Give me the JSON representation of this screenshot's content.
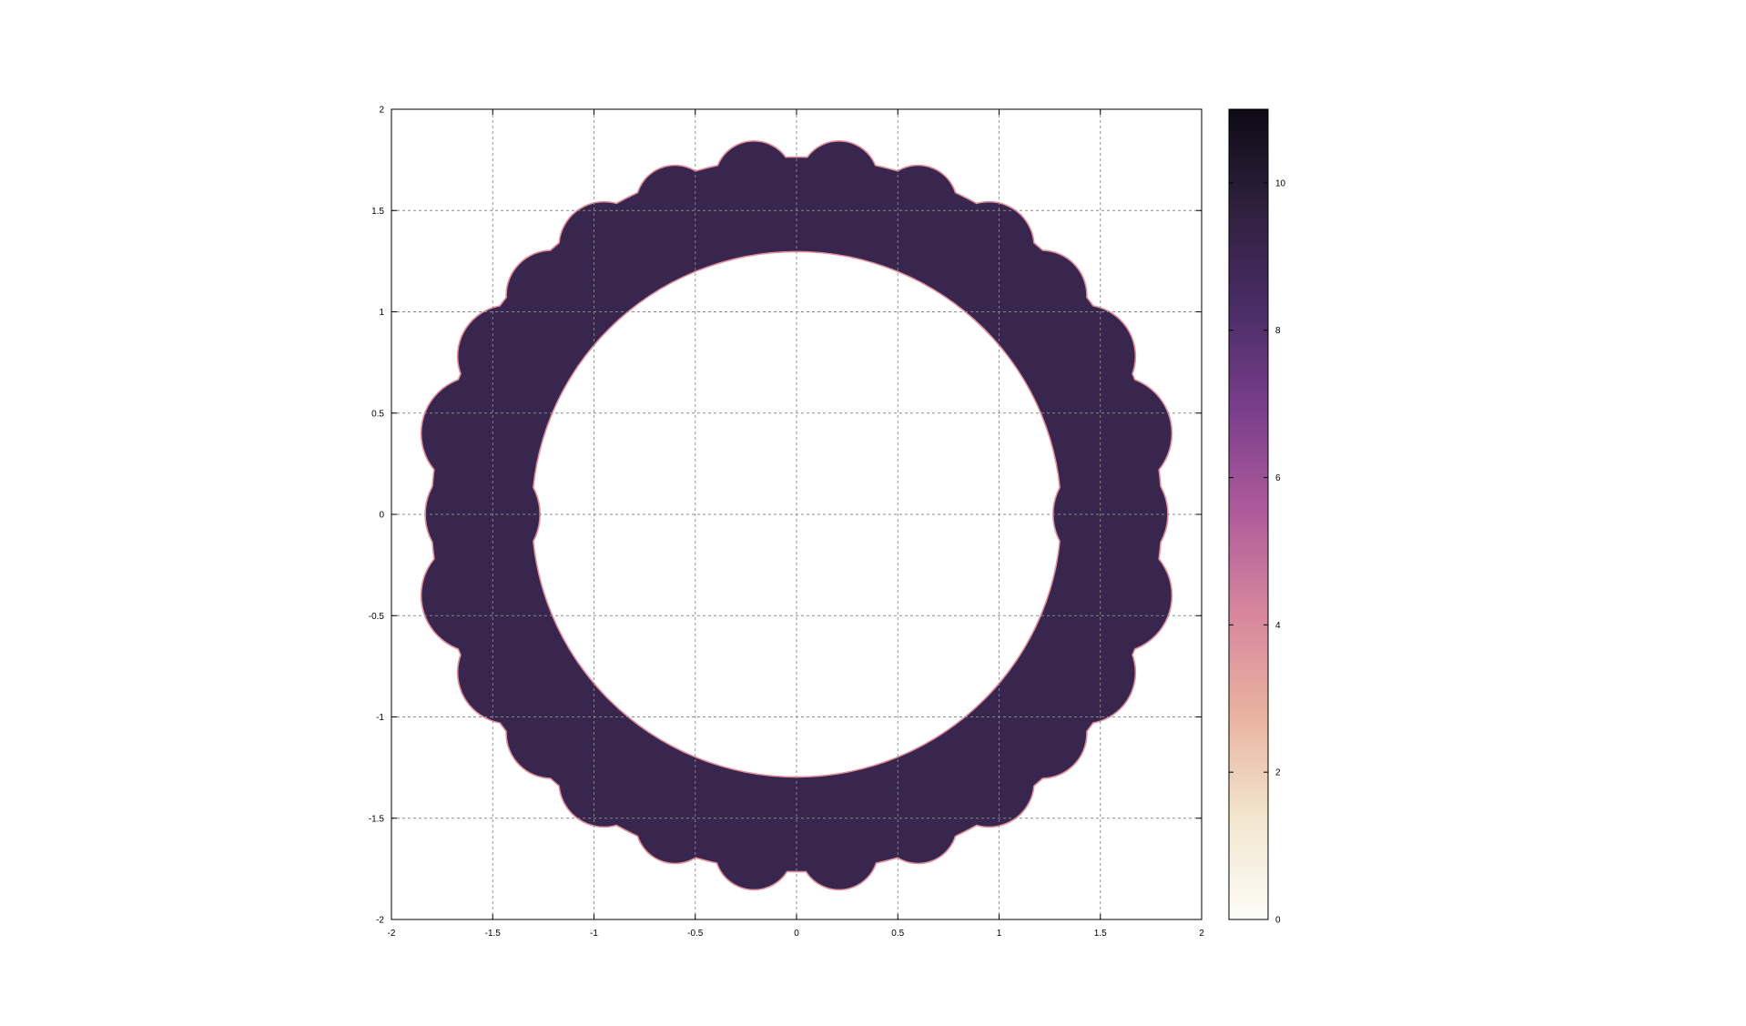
{
  "chart_data": {
    "type": "heatmap",
    "title": "",
    "xlabel": "",
    "ylabel": "",
    "xlim": [
      -2,
      2
    ],
    "ylim": [
      -2,
      2
    ],
    "grid": true,
    "x_ticks": [
      "-2",
      "-1.5",
      "-1",
      "-0.5",
      "0",
      "0.5",
      "1",
      "1.5",
      "2"
    ],
    "y_ticks": [
      "-2",
      "-1.5",
      "-1",
      "-0.5",
      "0",
      "0.5",
      "1",
      "1.5",
      "2"
    ],
    "x_tick_values": [
      -2,
      -1.5,
      -1,
      -0.5,
      0,
      0.5,
      1,
      1.5,
      2
    ],
    "y_tick_values": [
      -2,
      -1.5,
      -1,
      -0.5,
      0,
      0.5,
      1,
      1.5,
      2
    ],
    "fill_value": 10,
    "colorbar": {
      "range": [
        0,
        11
      ],
      "ticks": [
        "0",
        "2",
        "4",
        "6",
        "8",
        "10"
      ],
      "tick_values": [
        0,
        2,
        4,
        6,
        8,
        10
      ],
      "colors": [
        "#fcfcf7",
        "#f2e6cf",
        "#e9b3a0",
        "#d8879d",
        "#b05c9c",
        "#7c3f8c",
        "#4b2d68",
        "#30213f",
        "#0d0a15"
      ]
    },
    "fill_color": "#38264f",
    "edge_color": "#e3909c",
    "disks": [
      {
        "x": -0.21,
        "y": 1.65,
        "r": 0.19
      },
      {
        "x": 0.21,
        "y": 1.65,
        "r": 0.19
      },
      {
        "x": -0.6,
        "y": 1.53,
        "r": 0.19
      },
      {
        "x": 0.6,
        "y": 1.53,
        "r": 0.19
      },
      {
        "x": -0.95,
        "y": 1.32,
        "r": 0.22
      },
      {
        "x": 0.95,
        "y": 1.32,
        "r": 0.22
      },
      {
        "x": -1.21,
        "y": 1.08,
        "r": 0.22
      },
      {
        "x": 1.21,
        "y": 1.08,
        "r": 0.22
      },
      {
        "x": -1.42,
        "y": 0.78,
        "r": 0.25
      },
      {
        "x": 1.42,
        "y": 0.78,
        "r": 0.25
      },
      {
        "x": -1.57,
        "y": 0.4,
        "r": 0.28
      },
      {
        "x": 1.57,
        "y": 0.4,
        "r": 0.28
      },
      {
        "x": -1.55,
        "y": 0.0,
        "r": 0.28
      },
      {
        "x": 1.55,
        "y": 0.0,
        "r": 0.28
      },
      {
        "x": -1.57,
        "y": -0.4,
        "r": 0.28
      },
      {
        "x": 1.57,
        "y": -0.4,
        "r": 0.28
      },
      {
        "x": -1.42,
        "y": -0.78,
        "r": 0.25
      },
      {
        "x": 1.42,
        "y": -0.78,
        "r": 0.25
      },
      {
        "x": -1.21,
        "y": -1.08,
        "r": 0.22
      },
      {
        "x": 1.21,
        "y": -1.08,
        "r": 0.22
      },
      {
        "x": -0.95,
        "y": -1.32,
        "r": 0.22
      },
      {
        "x": 0.95,
        "y": -1.32,
        "r": 0.22
      },
      {
        "x": -0.6,
        "y": -1.53,
        "r": 0.19
      },
      {
        "x": 0.6,
        "y": -1.53,
        "r": 0.19
      },
      {
        "x": -0.21,
        "y": -1.66,
        "r": 0.19
      },
      {
        "x": 0.21,
        "y": -1.66,
        "r": 0.19
      }
    ],
    "ring_band": {
      "x": 0,
      "y": 0,
      "outer_rx": 1.8,
      "outer_ry": 1.76,
      "inner_rx": 1.31,
      "inner_ry": 1.3
    }
  }
}
